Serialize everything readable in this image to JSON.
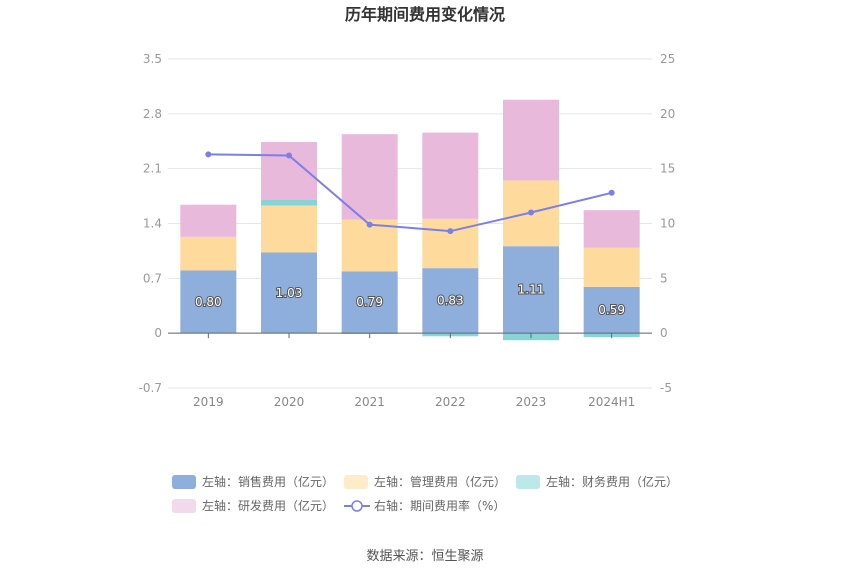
{
  "chart_data": {
    "type": "bar",
    "title": "历年期间费用变化情况",
    "categories": [
      "2019",
      "2020",
      "2021",
      "2022",
      "2023",
      "2024H1"
    ],
    "left_axis": {
      "min": -0.7,
      "max": 3.5,
      "ticks": [
        "3.5",
        "2.8",
        "2.1",
        "1.4",
        "0.7",
        "0",
        "-0.7"
      ]
    },
    "right_axis": {
      "min": -5,
      "max": 25,
      "ticks": [
        "25",
        "20",
        "15",
        "10",
        "5",
        "0",
        "-5"
      ]
    },
    "series": [
      {
        "name": "左轴：销售费用（亿元）",
        "axis": "left",
        "stacked": true,
        "color": "#8eaedc",
        "values": [
          0.8,
          1.03,
          0.79,
          0.83,
          1.11,
          0.59
        ],
        "labels": [
          "0.80",
          "1.03",
          "0.79",
          "0.83",
          "1.11",
          "0.59"
        ]
      },
      {
        "name": "左轴：管理费用（亿元）",
        "axis": "left",
        "stacked": true,
        "color": "#fedb9d",
        "values": [
          0.43,
          0.6,
          0.66,
          0.63,
          0.84,
          0.5
        ]
      },
      {
        "name": "左轴：财务费用（亿元）",
        "axis": "left",
        "stacked": true,
        "color": "#86d4d6",
        "values": [
          0.0,
          0.07,
          -0.01,
          -0.04,
          -0.09,
          -0.05
        ]
      },
      {
        "name": "左轴：研发费用（亿元）",
        "axis": "left",
        "stacked": true,
        "color": "#e8b9db",
        "values": [
          0.41,
          0.74,
          1.09,
          1.1,
          1.03,
          0.48
        ]
      },
      {
        "name": "右轴：期间费用率（%）",
        "axis": "right",
        "type": "line",
        "color": "#7b7fe8",
        "values": [
          16.3,
          16.2,
          9.9,
          9.3,
          11.0,
          12.8
        ]
      }
    ],
    "grid": true,
    "legend_position": "bottom"
  },
  "source_text": "数据来源：恒生聚源"
}
